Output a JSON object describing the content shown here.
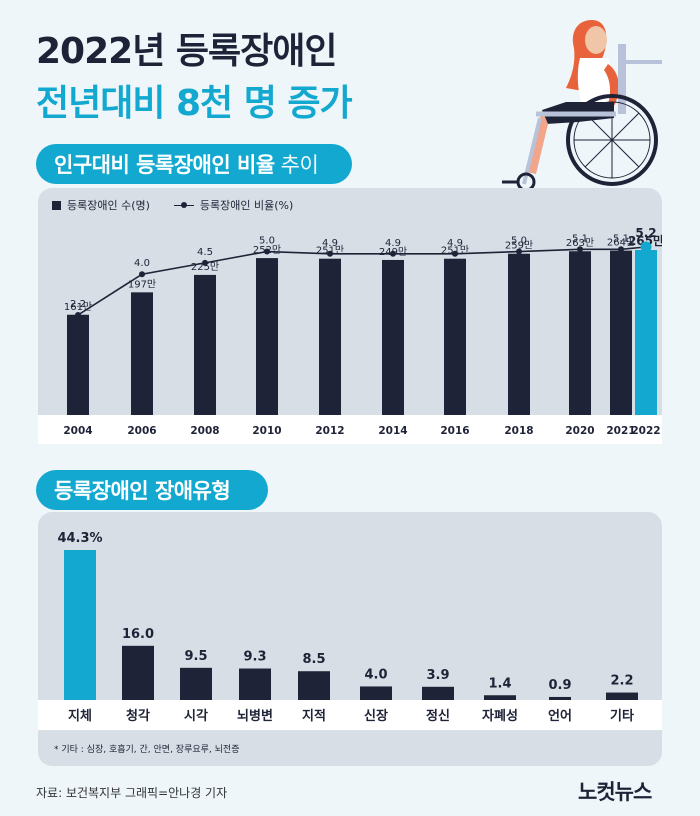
{
  "header": {
    "title_line1": "2022년 등록장애인",
    "title_line2": "전년대비 8천 명 증가"
  },
  "section1": {
    "pill_bold": "인구대비 등록장애인 비율",
    "pill_light": "추이"
  },
  "section2": {
    "pill": "등록장애인 장애유형"
  },
  "chart_data": [
    {
      "type": "bar",
      "legend": [
        "등록장애인 수(명)",
        "등록장애인 비율(%)"
      ],
      "legend_position": "top-left",
      "categories": [
        "2004",
        "2006",
        "2008",
        "2010",
        "2012",
        "2014",
        "2016",
        "2018",
        "2020",
        "2021",
        "2022"
      ],
      "series": [
        {
          "name": "등록장애인 수(명)",
          "type": "bar",
          "values": [
            161,
            197,
            225,
            252,
            251,
            249,
            251,
            259,
            263,
            264,
            265
          ],
          "labels": [
            "161만",
            "197만",
            "225만",
            "252만",
            "251만",
            "249만",
            "251만",
            "259만",
            "263만",
            "264만",
            "265만"
          ]
        },
        {
          "name": "등록장애인 비율(%)",
          "type": "line",
          "values": [
            2.2,
            4.0,
            4.5,
            5.0,
            4.9,
            4.9,
            4.9,
            5.0,
            5.1,
            5.1,
            5.2
          ],
          "labels": [
            "2.2",
            "4.0",
            "4.5",
            "5.0",
            "4.9",
            "4.9",
            "4.9",
            "5.0",
            "5.1",
            "5.1",
            "5.2"
          ]
        }
      ],
      "highlight_category": "2022",
      "grid": false
    },
    {
      "type": "bar",
      "categories": [
        "지체",
        "청각",
        "시각",
        "뇌병변",
        "지적",
        "신장",
        "정신",
        "자폐성",
        "언어",
        "기타"
      ],
      "values": [
        44.3,
        16.0,
        9.5,
        9.3,
        8.5,
        4.0,
        3.9,
        1.4,
        0.9,
        2.2
      ],
      "labels": [
        "44.3%",
        "16.0",
        "9.5",
        "9.3",
        "8.5",
        "4.0",
        "3.9",
        "1.4",
        "0.9",
        "2.2"
      ],
      "highlight_category": "지체",
      "grid": false
    }
  ],
  "footnote": "* 기타 : 심장, 호흡기, 간, 안면, 장루요루, 뇌전증",
  "source": "자료: 보건복지부    그래픽=안나경 기자",
  "logo": "노컷뉴스",
  "colors": {
    "accent": "#12a8cf",
    "dark": "#1e2337",
    "panel": "#d7dee5",
    "background": "#eef6fa"
  },
  "icons": [
    "wheelchair-user-illustration"
  ]
}
